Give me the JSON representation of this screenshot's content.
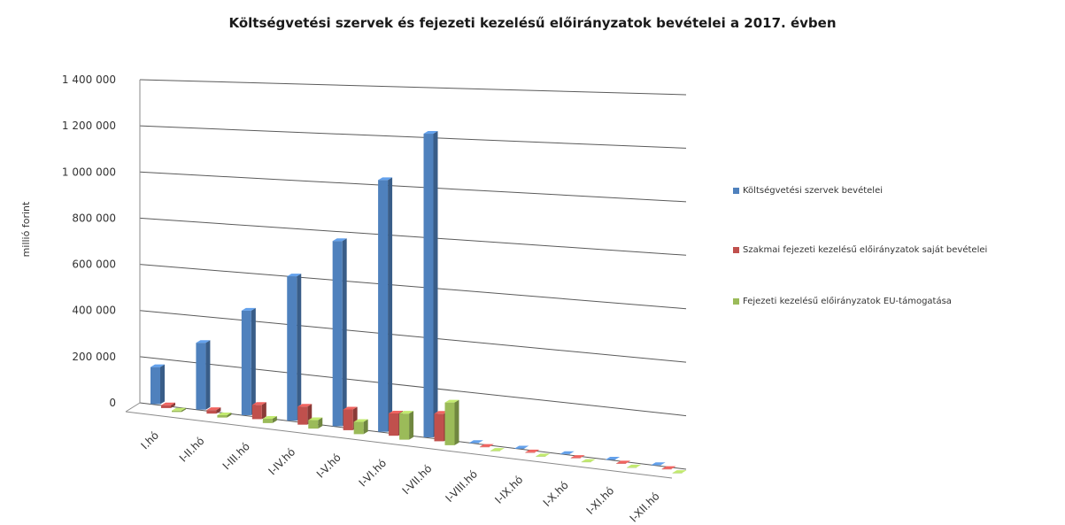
{
  "chart_data": {
    "type": "bar",
    "title": "Költségvetési szervek és fejezeti kezelésű előirányzatok bevételei a 2017. évben",
    "xlabel": "",
    "ylabel": "millió forint",
    "ylim": [
      0,
      1400000
    ],
    "yticks": [
      "0",
      "200 000",
      "400 000",
      "600 000",
      "800 000",
      "1 000 000",
      "1 200 000",
      "1 400 000"
    ],
    "ytick_values": [
      0,
      200000,
      400000,
      600000,
      800000,
      1000000,
      1200000,
      1400000
    ],
    "categories": [
      "I.hó",
      "I-II.hó",
      "I-III.hó",
      "I-IV.hó",
      "I-V.hó",
      "I-VI.hó",
      "I-VII.hó",
      "I-VIII.hó",
      "I-IX.hó",
      "I-X.hó",
      "I-XI.hó",
      "I-XII.hó"
    ],
    "series": [
      {
        "name": "Költségvetési szervek bevételei",
        "color": "#4f81bd",
        "values": [
          160000,
          285000,
          440000,
          600000,
          760000,
          1020000,
          1215000,
          0,
          0,
          0,
          0,
          0
        ]
      },
      {
        "name": "Szakmai fejezeti kezelésű előirányzatok saját bevételei",
        "color": "#c0504d",
        "values": [
          12000,
          15000,
          60000,
          75000,
          85000,
          90000,
          110000,
          0,
          0,
          0,
          0,
          0
        ]
      },
      {
        "name": "Fejezeti kezelésű előirányzatok EU-támogatása",
        "color": "#9bbb59",
        "values": [
          6000,
          10000,
          18000,
          35000,
          50000,
          105000,
          170000,
          0,
          0,
          0,
          0,
          0
        ]
      }
    ],
    "grid": true,
    "legend_position": "right"
  }
}
